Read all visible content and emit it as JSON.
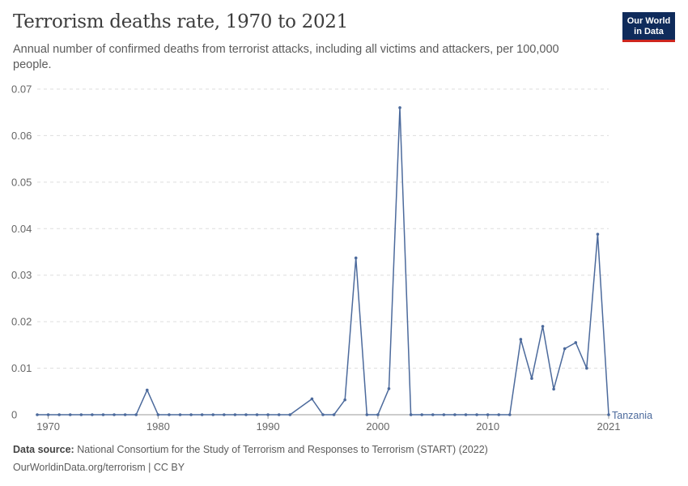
{
  "header": {
    "title": "Terrorism deaths rate, 1970 to 2021",
    "subtitle": "Annual number of confirmed deaths from terrorist attacks, including all victims and attackers, per 100,000 people.",
    "logo_line1": "Our World",
    "logo_line2": "in Data"
  },
  "footer": {
    "source_label": "Data source:",
    "source_text": "National Consortium for the Study of Terrorism and Responses to Terrorism (START) (2022)",
    "credit": "OurWorldinData.org/terrorism | CC BY"
  },
  "colors": {
    "series": "#4c6a9c",
    "grid": "#dddddd",
    "axis": "#999999"
  },
  "chart_data": {
    "type": "line",
    "xlim": [
      1969,
      2021
    ],
    "ylim": [
      0,
      0.07
    ],
    "y_ticks": [
      0,
      0.01,
      0.02,
      0.03,
      0.04,
      0.05,
      0.06,
      0.07
    ],
    "y_tick_labels": [
      "0",
      "0.01",
      "0.02",
      "0.03",
      "0.04",
      "0.05",
      "0.06",
      "0.07"
    ],
    "x_ticks": [
      1970,
      1980,
      1990,
      2000,
      2010,
      2021
    ],
    "x_tick_labels": [
      "1970",
      "1980",
      "1990",
      "2000",
      "2010",
      "2021"
    ],
    "grid": "horizontal-dashed",
    "series": [
      {
        "name": "Tanzania",
        "x": [
          1969,
          1970,
          1971,
          1972,
          1973,
          1974,
          1975,
          1976,
          1977,
          1978,
          1979,
          1980,
          1981,
          1982,
          1983,
          1984,
          1985,
          1986,
          1987,
          1988,
          1989,
          1990,
          1991,
          1992,
          1994,
          1995,
          1996,
          1997,
          1998,
          1999,
          2000,
          2001,
          2002,
          2003,
          2004,
          2005,
          2006,
          2007,
          2008,
          2009,
          2010,
          2011,
          2012,
          2013,
          2014,
          2015,
          2016,
          2017,
          2018,
          2019,
          2020,
          2021
        ],
        "values": [
          0,
          0,
          0,
          0,
          0,
          0,
          0,
          0,
          0,
          0,
          0.0053,
          0,
          0,
          0,
          0,
          0,
          0,
          0,
          0,
          0,
          0,
          0,
          0,
          0,
          0.0034,
          0,
          0,
          0.0032,
          0.0337,
          0,
          0,
          0.0056,
          0.066,
          0,
          0,
          0,
          0,
          0,
          0,
          0,
          0,
          0,
          0,
          0.0162,
          0.0078,
          0.019,
          0.0055,
          0.0142,
          0.0155,
          0.01,
          0.0388,
          0
        ]
      }
    ]
  }
}
